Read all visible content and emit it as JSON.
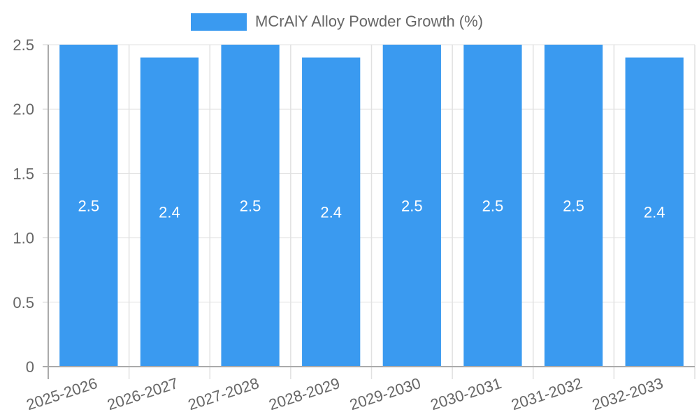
{
  "chart_data": {
    "type": "bar",
    "title": "",
    "xlabel": "",
    "ylabel": "",
    "categories": [
      "2025-2026",
      "2026-2027",
      "2027-2028",
      "2028-2029",
      "2029-2030",
      "2030-2031",
      "2031-2032",
      "2032-2033"
    ],
    "series": [
      {
        "name": "MCrAlY Alloy Powder Growth (%)",
        "values": [
          2.5,
          2.4,
          2.5,
          2.4,
          2.5,
          2.5,
          2.5,
          2.4
        ],
        "color": "#3a9af0"
      }
    ],
    "value_labels": [
      "2.5",
      "2.4",
      "2.5",
      "2.4",
      "2.5",
      "2.5",
      "2.5",
      "2.4"
    ],
    "ylim": [
      0,
      2.5
    ],
    "yticks": [
      "0",
      "0.5",
      "1.0",
      "1.5",
      "2.0",
      "2.5"
    ],
    "grid": true,
    "legend_position": "top"
  },
  "legend": {
    "label": "MCrAlY Alloy Powder Growth (%)"
  }
}
